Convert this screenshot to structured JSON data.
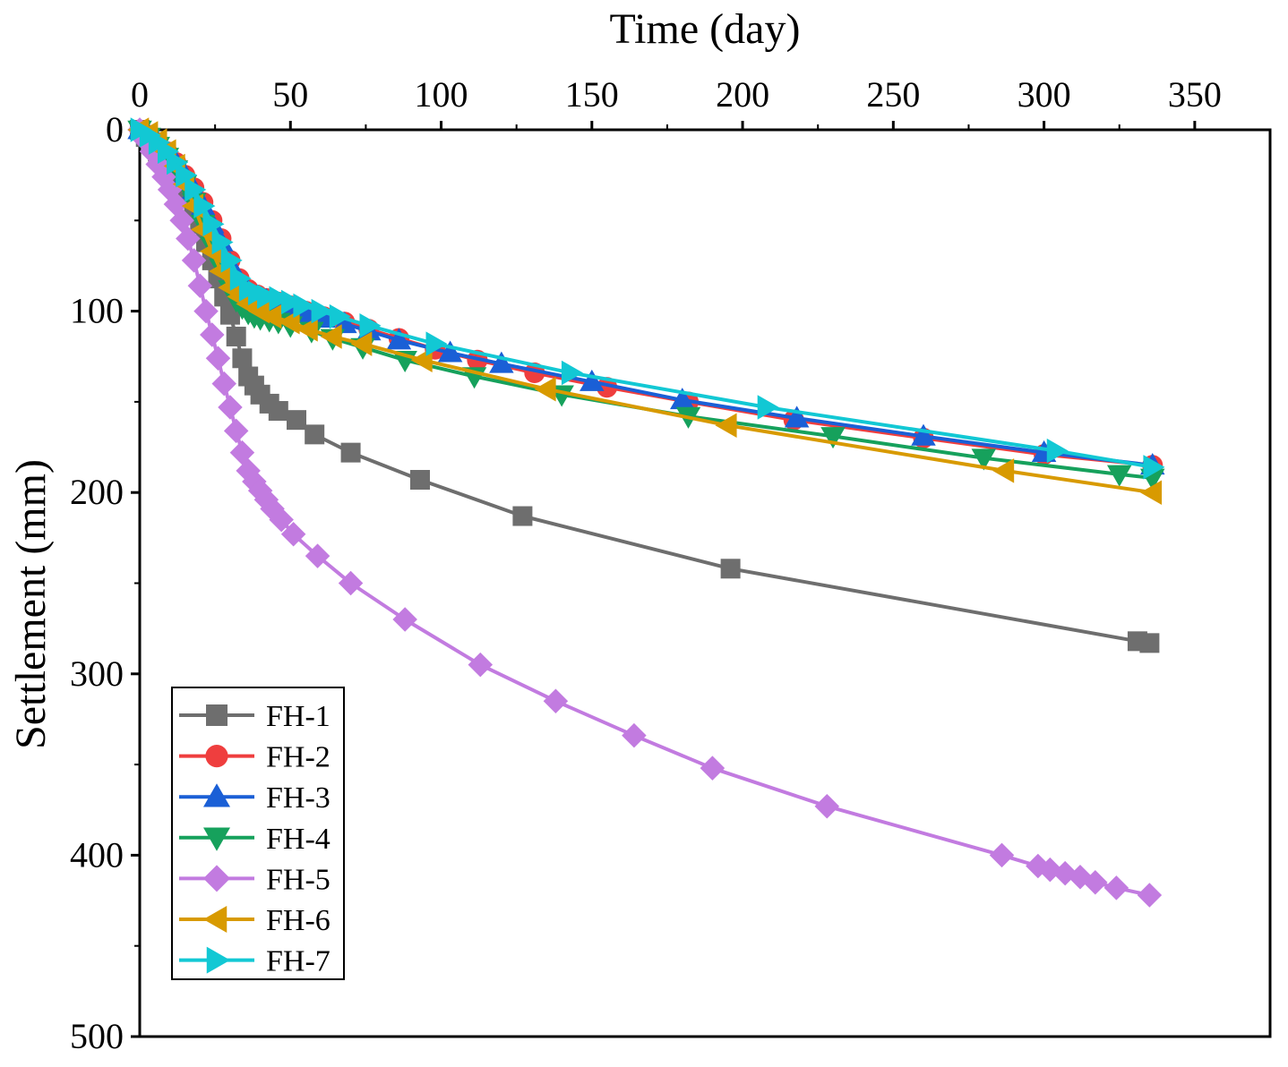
{
  "chart_data": {
    "type": "line",
    "xlabel": "Time (day)",
    "ylabel": "Settlement (mm)",
    "xlim": [
      0,
      375
    ],
    "ylim": [
      0,
      500
    ],
    "y_inverted": true,
    "x_axis_position": "top",
    "x_ticks": [
      0,
      50,
      100,
      150,
      200,
      250,
      300,
      350
    ],
    "y_ticks": [
      0,
      100,
      200,
      300,
      400,
      500
    ],
    "legend_position": "bottom-left",
    "series": [
      {
        "name": "FH-1",
        "color": "#6e6e6e",
        "marker": "square",
        "x": [
          0,
          2,
          4,
          6,
          8,
          10,
          12,
          14,
          16,
          18,
          20,
          22,
          24,
          26,
          28,
          30,
          32,
          34,
          36,
          38,
          40,
          43,
          46,
          52,
          58,
          70,
          93,
          127,
          196,
          331,
          335
        ],
        "y": [
          0,
          4,
          8,
          12,
          16,
          20,
          25,
          30,
          36,
          43,
          52,
          62,
          72,
          82,
          92,
          102,
          114,
          126,
          136,
          141,
          146,
          151,
          155,
          160,
          168,
          178,
          193,
          213,
          242,
          282,
          283
        ]
      },
      {
        "name": "FH-2",
        "color": "#ef3e3e",
        "marker": "circle",
        "x": [
          0,
          3,
          6,
          9,
          12,
          15,
          18,
          21,
          24,
          27,
          30,
          33,
          36,
          39,
          42,
          46,
          50,
          55,
          61,
          68,
          76,
          86,
          98,
          112,
          131,
          155,
          182,
          217,
          260,
          300,
          336
        ],
        "y": [
          0,
          3,
          7,
          12,
          18,
          25,
          32,
          40,
          50,
          60,
          72,
          82,
          88,
          91,
          93,
          95,
          97,
          100,
          103,
          106,
          110,
          115,
          121,
          127,
          134,
          142,
          150,
          160,
          170,
          179,
          185
        ]
      },
      {
        "name": "FH-3",
        "color": "#1a5fd6",
        "marker": "triangle-up",
        "x": [
          0,
          3,
          6,
          9,
          12,
          15,
          18,
          21,
          24,
          27,
          30,
          33,
          36,
          39,
          42,
          46,
          50,
          55,
          61,
          68,
          76,
          86,
          103,
          120,
          150,
          180,
          218,
          260,
          300,
          336
        ],
        "y": [
          0,
          3,
          7,
          12,
          18,
          25,
          33,
          42,
          52,
          62,
          74,
          84,
          89,
          92,
          94,
          96,
          98,
          101,
          104,
          107,
          111,
          116,
          123,
          129,
          139,
          149,
          159,
          169,
          178,
          185
        ]
      },
      {
        "name": "FH-4",
        "color": "#16a15c",
        "marker": "triangle-down",
        "x": [
          0,
          3,
          6,
          9,
          12,
          15,
          18,
          21,
          24,
          27,
          30,
          32,
          34,
          36,
          38,
          40,
          43,
          46,
          50,
          57,
          64,
          74,
          88,
          111,
          140,
          182,
          230,
          280,
          325,
          336
        ],
        "y": [
          0,
          4,
          9,
          15,
          22,
          30,
          40,
          52,
          64,
          76,
          88,
          94,
          98,
          101,
          103,
          104,
          105,
          106,
          108,
          111,
          115,
          120,
          127,
          136,
          146,
          158,
          169,
          181,
          190,
          192
        ]
      },
      {
        "name": "FH-5",
        "color": "#c27be0",
        "marker": "diamond",
        "x": [
          0,
          2,
          4,
          6,
          8,
          10,
          12,
          14,
          16,
          18,
          20,
          22,
          24,
          26,
          28,
          30,
          32,
          34,
          36,
          38,
          40,
          42,
          44,
          47,
          51,
          59,
          70,
          88,
          113,
          138,
          164,
          190,
          228,
          286,
          298,
          302,
          307,
          312,
          317,
          324,
          335
        ],
        "y": [
          0,
          6,
          12,
          19,
          26,
          33,
          41,
          50,
          60,
          72,
          86,
          100,
          113,
          126,
          140,
          153,
          166,
          178,
          188,
          194,
          199,
          204,
          209,
          215,
          223,
          235,
          250,
          270,
          295,
          315,
          334,
          352,
          373,
          400,
          406,
          408,
          410,
          412,
          415,
          418,
          422
        ]
      },
      {
        "name": "FH-6",
        "color": "#d89a00",
        "marker": "triangle-left",
        "x": [
          0,
          3,
          6,
          9,
          12,
          15,
          18,
          21,
          24,
          27,
          30,
          33,
          36,
          40,
          44,
          50,
          56,
          64,
          74,
          94,
          135,
          195,
          287,
          336
        ],
        "y": [
          0,
          2,
          6,
          12,
          20,
          30,
          42,
          55,
          67,
          78,
          87,
          92,
          96,
          100,
          103,
          106,
          110,
          114,
          118,
          127,
          143,
          163,
          188,
          200
        ]
      },
      {
        "name": "FH-7",
        "color": "#12c8d4",
        "marker": "triangle-right",
        "x": [
          0,
          3,
          6,
          9,
          12,
          15,
          18,
          21,
          24,
          27,
          30,
          33,
          36,
          39,
          42,
          46,
          50,
          54,
          60,
          66,
          76,
          98,
          143,
          208,
          304,
          336
        ],
        "y": [
          0,
          3,
          7,
          12,
          18,
          25,
          33,
          42,
          52,
          62,
          72,
          82,
          88,
          90,
          92,
          93,
          95,
          97,
          100,
          103,
          108,
          118,
          134,
          153,
          177,
          186
        ]
      }
    ]
  }
}
